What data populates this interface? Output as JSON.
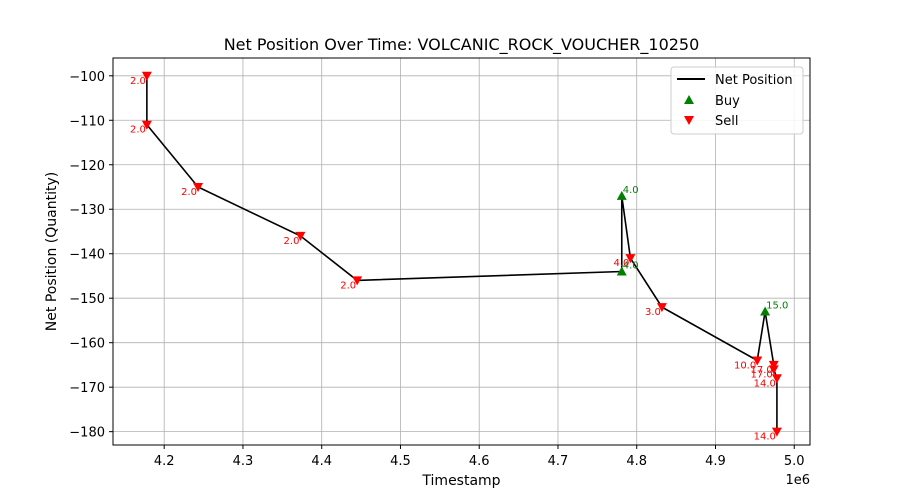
{
  "chart_data": {
    "type": "line",
    "title": "Net Position Over Time: VOLCANIC_ROCK_VOUCHER_10250",
    "xlabel": "Timestamp",
    "ylabel": "Net Position (Quantity)",
    "x_offset_label": "1e6",
    "xlim": [
      4.135,
      5.02
    ],
    "ylim": [
      -183,
      -96
    ],
    "x_ticks": [
      4.2,
      4.3,
      4.4,
      4.5,
      4.6,
      4.7,
      4.8,
      4.9,
      5.0
    ],
    "x_tick_labels": [
      "4.2",
      "4.3",
      "4.4",
      "4.5",
      "4.6",
      "4.7",
      "4.8",
      "4.9",
      "5.0"
    ],
    "y_ticks": [
      -100,
      -110,
      -120,
      -130,
      -140,
      -150,
      -160,
      -170,
      -180
    ],
    "y_tick_labels": [
      "−100",
      "−110",
      "−120",
      "−130",
      "−140",
      "−150",
      "−160",
      "−170",
      "−180"
    ],
    "grid": true,
    "legend_position": "top-right",
    "series": [
      {
        "name": "Net Position",
        "color": "#000000",
        "x": [
          4.178,
          4.178,
          4.243,
          4.373,
          4.445,
          4.781,
          4.781,
          4.792,
          4.832,
          4.953,
          4.963,
          4.974,
          4.974,
          4.978,
          4.978
        ],
        "y": [
          -100,
          -111,
          -125,
          -136,
          -146,
          -144,
          -127,
          -141,
          -152,
          -164,
          -153,
          -165,
          -166,
          -168,
          -180
        ]
      },
      {
        "name": "Buy",
        "marker": "triangle-up",
        "color": "#008000",
        "x": [
          4.781,
          4.781,
          4.963
        ],
        "y": [
          -144,
          -127,
          -153
        ],
        "labels": [
          "4.0",
          "4.0",
          "15.0"
        ]
      },
      {
        "name": "Sell",
        "marker": "triangle-down",
        "color": "#ff0000",
        "x": [
          4.178,
          4.178,
          4.243,
          4.373,
          4.445,
          4.792,
          4.832,
          4.953,
          4.974,
          4.974,
          4.978,
          4.978
        ],
        "y": [
          -100,
          -111,
          -125,
          -136,
          -146,
          -141,
          -152,
          -164,
          -165,
          -166,
          -168,
          -180
        ],
        "labels": [
          "2.0",
          "2.0",
          "2.0",
          "2.0",
          "2.0",
          "4.0",
          "3.0",
          "10.0",
          "17.0",
          "17.0",
          "14.0",
          "14.0"
        ]
      }
    ]
  }
}
